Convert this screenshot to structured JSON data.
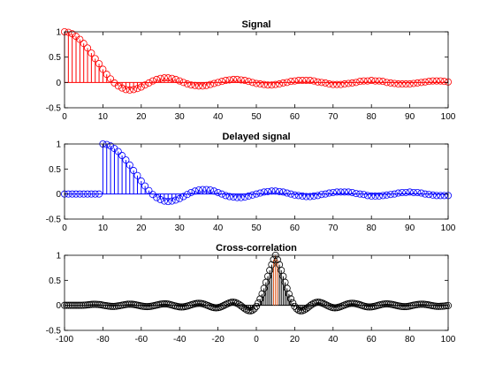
{
  "chart_data": [
    {
      "type": "stem",
      "title": "Signal",
      "xlabel": "",
      "ylabel": "",
      "xlim": [
        0,
        100
      ],
      "ylim": [
        -0.5,
        1
      ],
      "xticks": [
        "0",
        "10",
        "20",
        "30",
        "40",
        "50",
        "60",
        "70",
        "80",
        "90",
        "100"
      ],
      "yticks": [
        "1",
        "0.5",
        "0",
        "-0.5"
      ],
      "color": "#ff0000",
      "marker": "open-circle",
      "x_start": 0,
      "values": [
        1.0,
        0.99,
        0.96,
        0.91,
        0.85,
        0.77,
        0.68,
        0.58,
        0.47,
        0.37,
        0.26,
        0.16,
        0.07,
        -0.01,
        -0.07,
        -0.11,
        -0.14,
        -0.15,
        -0.14,
        -0.12,
        -0.09,
        -0.05,
        -0.01,
        0.03,
        0.06,
        0.08,
        0.09,
        0.09,
        0.08,
        0.06,
        0.03,
        0.0,
        -0.03,
        -0.05,
        -0.06,
        -0.07,
        -0.07,
        -0.06,
        -0.04,
        -0.02,
        0.0,
        0.02,
        0.04,
        0.05,
        0.06,
        0.06,
        0.05,
        0.04,
        0.02,
        0.0,
        -0.02,
        -0.03,
        -0.04,
        -0.05,
        -0.05,
        -0.04,
        -0.03,
        -0.01,
        0.0,
        0.02,
        0.03,
        0.04,
        0.04,
        0.04,
        0.04,
        0.03,
        0.01,
        0.0,
        -0.01,
        -0.03,
        -0.04,
        -0.04,
        -0.04,
        -0.03,
        -0.02,
        -0.01,
        0.0,
        0.02,
        0.03,
        0.03,
        0.04,
        0.03,
        0.03,
        0.02,
        0.0,
        -0.01,
        -0.02,
        -0.03,
        -0.03,
        -0.03,
        -0.03,
        -0.02,
        -0.01,
        0.0,
        0.01,
        0.02,
        0.03,
        0.03,
        0.03,
        0.02,
        0.01
      ]
    },
    {
      "type": "stem",
      "title": "Delayed signal",
      "xlabel": "",
      "ylabel": "",
      "xlim": [
        0,
        100
      ],
      "ylim": [
        -0.5,
        1
      ],
      "xticks": [
        "0",
        "10",
        "20",
        "30",
        "40",
        "50",
        "60",
        "70",
        "80",
        "90",
        "100"
      ],
      "yticks": [
        "1",
        "0.5",
        "0",
        "-0.5"
      ],
      "color": "#0000ff",
      "marker": "open-circle",
      "x_start": 0,
      "values": [
        0.0,
        0.0,
        0.0,
        0.0,
        0.0,
        0.0,
        0.0,
        0.0,
        0.0,
        0.0,
        1.0,
        0.99,
        0.96,
        0.91,
        0.85,
        0.77,
        0.68,
        0.58,
        0.47,
        0.37,
        0.26,
        0.16,
        0.07,
        -0.01,
        -0.07,
        -0.11,
        -0.14,
        -0.15,
        -0.14,
        -0.12,
        -0.09,
        -0.05,
        -0.01,
        0.03,
        0.06,
        0.08,
        0.09,
        0.09,
        0.08,
        0.06,
        0.03,
        0.0,
        -0.03,
        -0.05,
        -0.06,
        -0.07,
        -0.07,
        -0.06,
        -0.04,
        -0.02,
        0.0,
        0.02,
        0.04,
        0.05,
        0.06,
        0.06,
        0.05,
        0.04,
        0.02,
        0.0,
        -0.02,
        -0.03,
        -0.04,
        -0.05,
        -0.05,
        -0.04,
        -0.03,
        -0.01,
        0.0,
        0.02,
        0.03,
        0.04,
        0.04,
        0.04,
        0.04,
        0.03,
        0.01,
        0.0,
        -0.01,
        -0.03,
        -0.04,
        -0.04,
        -0.04,
        -0.03,
        -0.02,
        -0.01,
        0.0,
        0.02,
        0.03,
        0.03,
        0.04,
        0.03,
        0.03,
        0.02,
        0.0,
        -0.01,
        -0.02,
        -0.03,
        -0.03,
        -0.03,
        -0.03
      ]
    },
    {
      "type": "stem",
      "title": "Cross-correlation",
      "xlabel": "",
      "ylabel": "",
      "xlim": [
        -100,
        100
      ],
      "ylim": [
        -0.5,
        1
      ],
      "xticks": [
        "-100",
        "-80",
        "-60",
        "-40",
        "-20",
        "0",
        "20",
        "40",
        "60",
        "80",
        "100"
      ],
      "yticks": [
        "1",
        "0.5",
        "0",
        "-0.5"
      ],
      "color": "#000000",
      "marker": "open-circle",
      "peak_color": "#d95319",
      "peak_lag": 10,
      "peak_value": 1.0,
      "x_start": -100,
      "step": 1,
      "envelope_note_free": true,
      "values": []
    }
  ]
}
